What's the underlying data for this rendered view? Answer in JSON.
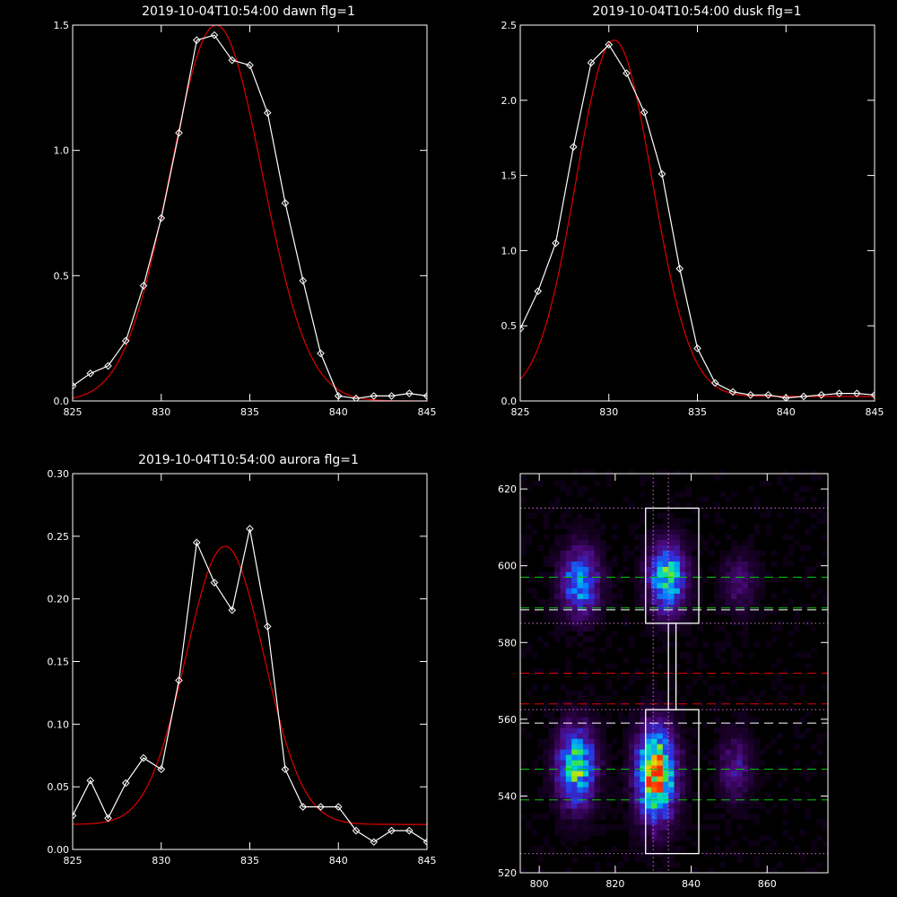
{
  "colors": {
    "background": "#000000",
    "axes": "#ffffff",
    "observed": "#ffffff",
    "fit": "#e00000"
  },
  "chart_data": [
    {
      "type": "line",
      "title": "2019-10-04T10:54:00 dawn flg=1",
      "xlim": [
        825,
        845
      ],
      "ylim": [
        0,
        1.5
      ],
      "xticks": [
        825,
        830,
        835,
        840,
        845
      ],
      "yticks": [
        0.0,
        0.5,
        1.0,
        1.5
      ],
      "ytick_labels": [
        "0.0",
        "0.5",
        "1.0",
        "1.5"
      ],
      "series": [
        {
          "values": [
            [
              825,
              0.06
            ],
            [
              826,
              0.11
            ],
            [
              827,
              0.14
            ],
            [
              828,
              0.24
            ],
            [
              829,
              0.46
            ],
            [
              830,
              0.73
            ],
            [
              831,
              1.07
            ],
            [
              832,
              1.44
            ],
            [
              833,
              1.46
            ],
            [
              834,
              1.36
            ],
            [
              835,
              1.34
            ],
            [
              836,
              1.15
            ],
            [
              837,
              0.79
            ],
            [
              838,
              0.48
            ],
            [
              839,
              0.19
            ],
            [
              840,
              0.02
            ],
            [
              841,
              0.01
            ],
            [
              842,
              0.02
            ],
            [
              843,
              0.02
            ],
            [
              844,
              0.03
            ],
            [
              845,
              0.02
            ]
          ]
        }
      ],
      "fit": {
        "center": 833.1,
        "amplitude": 1.5,
        "sigma": 2.6,
        "baseline": 0.0
      }
    },
    {
      "type": "line",
      "title": "2019-10-04T10:54:00 dusk flg=1",
      "xlim": [
        825,
        845
      ],
      "ylim": [
        0,
        2.5
      ],
      "xticks": [
        825,
        830,
        835,
        840,
        845
      ],
      "yticks": [
        0.0,
        0.5,
        1.0,
        1.5,
        2.0,
        2.5
      ],
      "ytick_labels": [
        "0.0",
        "0.5",
        "1.0",
        "1.5",
        "2.0",
        "2.5"
      ],
      "series": [
        {
          "values": [
            [
              825,
              0.48
            ],
            [
              826,
              0.73
            ],
            [
              827,
              1.05
            ],
            [
              828,
              1.69
            ],
            [
              829,
              2.25
            ],
            [
              830,
              2.37
            ],
            [
              831,
              2.18
            ],
            [
              832,
              1.92
            ],
            [
              833,
              1.51
            ],
            [
              834,
              0.88
            ],
            [
              835,
              0.35
            ],
            [
              836,
              0.12
            ],
            [
              837,
              0.06
            ],
            [
              838,
              0.04
            ],
            [
              839,
              0.04
            ],
            [
              840,
              0.02
            ],
            [
              841,
              0.03
            ],
            [
              842,
              0.04
            ],
            [
              843,
              0.05
            ],
            [
              844,
              0.05
            ],
            [
              845,
              0.04
            ]
          ]
        }
      ],
      "fit": {
        "center": 830.3,
        "amplitude": 2.37,
        "sigma": 2.15,
        "baseline": 0.03
      }
    },
    {
      "type": "line",
      "title": "2019-10-04T10:54:00 aurora flg=1",
      "xlim": [
        825,
        845
      ],
      "ylim": [
        0,
        0.3
      ],
      "xticks": [
        825,
        830,
        835,
        840,
        845
      ],
      "yticks": [
        0.0,
        0.05,
        0.1,
        0.15,
        0.2,
        0.25,
        0.3
      ],
      "ytick_labels": [
        "0.00",
        "0.05",
        "0.10",
        "0.15",
        "0.20",
        "0.25",
        "0.30"
      ],
      "series": [
        {
          "values": [
            [
              825,
              0.027
            ],
            [
              826,
              0.055
            ],
            [
              827,
              0.025
            ],
            [
              828,
              0.053
            ],
            [
              829,
              0.073
            ],
            [
              830,
              0.064
            ],
            [
              831,
              0.135
            ],
            [
              832,
              0.245
            ],
            [
              833,
              0.213
            ],
            [
              834,
              0.191
            ],
            [
              835,
              0.256
            ],
            [
              836,
              0.178
            ],
            [
              837,
              0.064
            ],
            [
              838,
              0.034
            ],
            [
              839,
              0.034
            ],
            [
              840,
              0.034
            ],
            [
              841,
              0.015
            ],
            [
              842,
              0.006
            ],
            [
              843,
              0.015
            ],
            [
              844,
              0.015
            ],
            [
              845,
              0.006
            ]
          ]
        }
      ],
      "fit": {
        "center": 833.6,
        "amplitude": 0.222,
        "sigma": 2.2,
        "baseline": 0.02
      }
    },
    {
      "type": "heatmap",
      "title": "",
      "xlim": [
        795,
        876
      ],
      "ylim": [
        520,
        624
      ],
      "xticks": [
        800,
        820,
        840,
        860
      ],
      "yticks": [
        520,
        540,
        560,
        580,
        600,
        620
      ],
      "blobs": [
        {
          "x": 810,
          "y": 595,
          "sx": 3.5,
          "sy": 6,
          "a": 0.55
        },
        {
          "x": 833,
          "y": 596,
          "sx": 3.2,
          "sy": 6,
          "a": 0.75
        },
        {
          "x": 852,
          "y": 595,
          "sx": 3,
          "sy": 5,
          "a": 0.22
        },
        {
          "x": 809,
          "y": 547,
          "sx": 3.5,
          "sy": 7,
          "a": 0.7
        },
        {
          "x": 830,
          "y": 545,
          "sx": 3.5,
          "sy": 8,
          "a": 1.0
        },
        {
          "x": 851,
          "y": 547,
          "sx": 3,
          "sy": 6,
          "a": 0.25
        }
      ],
      "hlines": [
        {
          "y": 615,
          "color": "#d070d0",
          "style": "dotted"
        },
        {
          "y": 597,
          "color": "#00c800",
          "style": "dashed"
        },
        {
          "y": 589,
          "color": "#00c800",
          "style": "dashed"
        },
        {
          "y": 588.5,
          "color": "#ffffff",
          "style": "dashed"
        },
        {
          "y": 585,
          "color": "#d070d0",
          "style": "dotted"
        },
        {
          "y": 572,
          "color": "#e00000",
          "style": "dashed"
        },
        {
          "y": 564,
          "color": "#e00000",
          "style": "dashed"
        },
        {
          "y": 562.5,
          "color": "#d070d0",
          "style": "dotted"
        },
        {
          "y": 559,
          "color": "#ffffff",
          "style": "dashed"
        },
        {
          "y": 547,
          "color": "#00c800",
          "style": "dashed"
        },
        {
          "y": 539,
          "color": "#00c800",
          "style": "dashed"
        },
        {
          "y": 525,
          "color": "#d070d0",
          "style": "dotted"
        }
      ],
      "vlines": [
        {
          "x": 830,
          "color": "#d070d0",
          "style": "dotted"
        },
        {
          "x": 834,
          "color": "#d070d0",
          "style": "dotted"
        }
      ],
      "boxes": [
        [
          828,
          585,
          842,
          615
        ],
        [
          834,
          562.5,
          836,
          585
        ],
        [
          828,
          525,
          842,
          562.5
        ]
      ]
    }
  ]
}
